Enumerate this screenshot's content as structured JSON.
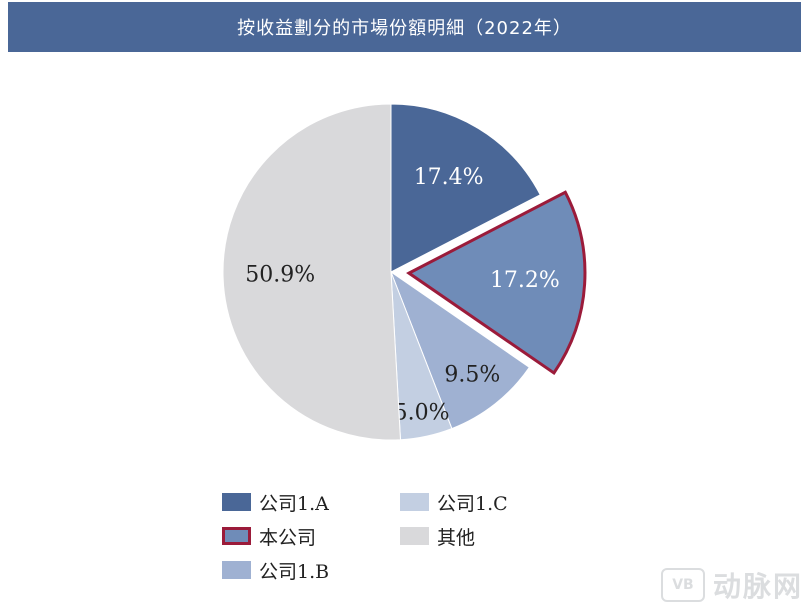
{
  "chart_data": {
    "type": "pie",
    "title": "按收益劃分的市場份額明細（2022年）",
    "slices": [
      {
        "label": "公司1.A",
        "value": 17.4,
        "display": "17.4%",
        "color": "#4a6797",
        "label_color": "#ffffff",
        "exploded": false
      },
      {
        "label": "本公司",
        "value": 17.2,
        "display": "17.2%",
        "color": "#6f8cb8",
        "label_color": "#ffffff",
        "exploded": true,
        "outline_color": "#9b1b3a"
      },
      {
        "label": "公司1.B",
        "value": 9.5,
        "display": "9.5%",
        "color": "#9fb1d2",
        "label_color": "#222222",
        "exploded": false
      },
      {
        "label": "公司1.C",
        "value": 5.0,
        "display": "5.0%",
        "color": "#c3cfe2",
        "label_color": "#222222",
        "exploded": false
      },
      {
        "label": "其他",
        "value": 50.9,
        "display": "50.9%",
        "color": "#d9d9db",
        "label_color": "#222222",
        "exploded": false
      }
    ],
    "legend_placement": "bottom",
    "legend_order": [
      "公司1.A",
      "公司1.C",
      "本公司",
      "其他",
      "公司1.B"
    ]
  },
  "watermark": {
    "logo_text": "VB",
    "text": "动脉网"
  }
}
